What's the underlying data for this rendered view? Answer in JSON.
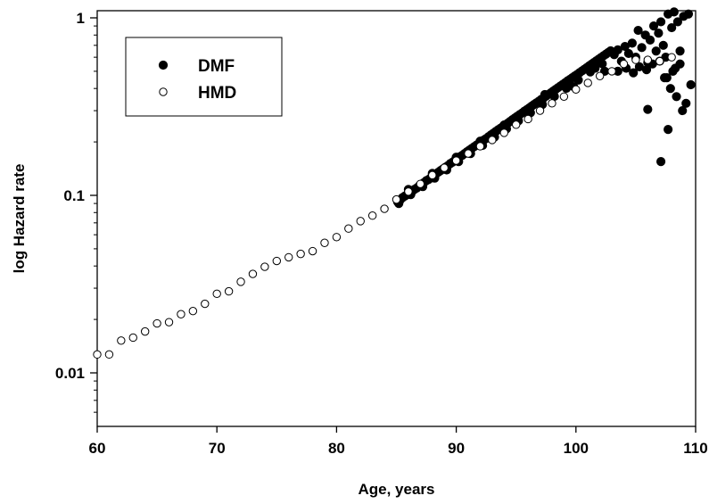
{
  "chart_data": {
    "type": "scatter",
    "title": "",
    "xlabel": "Age, years",
    "ylabel": "log Hazard rate",
    "xlim": [
      60,
      110
    ],
    "ylim": [
      0.005,
      1.15
    ],
    "yscale": "log",
    "grid": false,
    "legend_position": "top-left",
    "x_ticks": [
      60,
      70,
      80,
      90,
      100,
      110
    ],
    "x_tick_labels": [
      "60",
      "70",
      "80",
      "90",
      "100",
      "110"
    ],
    "y_ticks": [
      0.01,
      0.1,
      1
    ],
    "y_tick_labels": [
      "0.01",
      "0.1",
      "1"
    ],
    "series": [
      {
        "name": "DMF",
        "marker": "filled-circle",
        "color": "#000000",
        "points": [
          [
            85.1,
            0.092
          ],
          [
            85.3,
            0.094
          ],
          [
            85.5,
            0.097
          ],
          [
            85.7,
            0.099
          ],
          [
            85.9,
            0.101
          ],
          [
            86.1,
            0.103
          ],
          [
            86.3,
            0.105
          ],
          [
            86.5,
            0.108
          ],
          [
            86.7,
            0.11
          ],
          [
            86.9,
            0.113
          ],
          [
            87.1,
            0.115
          ],
          [
            87.3,
            0.118
          ],
          [
            87.5,
            0.121
          ],
          [
            87.7,
            0.123
          ],
          [
            87.9,
            0.126
          ],
          [
            88.1,
            0.129
          ],
          [
            88.3,
            0.132
          ],
          [
            88.5,
            0.135
          ],
          [
            88.7,
            0.138
          ],
          [
            88.9,
            0.141
          ],
          [
            89.1,
            0.144
          ],
          [
            89.3,
            0.147
          ],
          [
            89.5,
            0.151
          ],
          [
            89.7,
            0.154
          ],
          [
            89.9,
            0.158
          ],
          [
            90.1,
            0.161
          ],
          [
            90.3,
            0.165
          ],
          [
            90.5,
            0.168
          ],
          [
            90.7,
            0.172
          ],
          [
            90.9,
            0.176
          ],
          [
            91.1,
            0.18
          ],
          [
            91.3,
            0.184
          ],
          [
            91.5,
            0.188
          ],
          [
            91.7,
            0.192
          ],
          [
            91.9,
            0.196
          ],
          [
            92.1,
            0.2
          ],
          [
            92.3,
            0.205
          ],
          [
            92.5,
            0.209
          ],
          [
            92.7,
            0.214
          ],
          [
            92.9,
            0.219
          ],
          [
            93.1,
            0.224
          ],
          [
            93.3,
            0.229
          ],
          [
            93.5,
            0.234
          ],
          [
            93.7,
            0.239
          ],
          [
            93.9,
            0.244
          ],
          [
            94.1,
            0.25
          ],
          [
            94.3,
            0.255
          ],
          [
            94.5,
            0.261
          ],
          [
            94.7,
            0.267
          ],
          [
            94.9,
            0.273
          ],
          [
            95.1,
            0.279
          ],
          [
            95.3,
            0.285
          ],
          [
            95.5,
            0.291
          ],
          [
            95.7,
            0.298
          ],
          [
            95.9,
            0.304
          ],
          [
            96.1,
            0.311
          ],
          [
            96.3,
            0.318
          ],
          [
            96.5,
            0.325
          ],
          [
            96.7,
            0.332
          ],
          [
            96.9,
            0.339
          ],
          [
            97.1,
            0.347
          ],
          [
            97.3,
            0.354
          ],
          [
            97.5,
            0.362
          ],
          [
            97.7,
            0.37
          ],
          [
            97.9,
            0.378
          ],
          [
            98.1,
            0.387
          ],
          [
            98.3,
            0.395
          ],
          [
            98.5,
            0.404
          ],
          [
            98.7,
            0.413
          ],
          [
            98.9,
            0.422
          ],
          [
            99.1,
            0.431
          ],
          [
            99.3,
            0.441
          ],
          [
            99.5,
            0.45
          ],
          [
            99.7,
            0.46
          ],
          [
            99.9,
            0.47
          ],
          [
            100.1,
            0.48
          ],
          [
            100.3,
            0.491
          ],
          [
            100.5,
            0.502
          ],
          [
            100.7,
            0.513
          ],
          [
            100.9,
            0.524
          ],
          [
            101.1,
            0.536
          ],
          [
            101.3,
            0.548
          ],
          [
            101.5,
            0.56
          ],
          [
            101.7,
            0.572
          ],
          [
            101.9,
            0.585
          ],
          [
            102.1,
            0.598
          ],
          [
            102.3,
            0.611
          ],
          [
            102.5,
            0.624
          ],
          [
            102.7,
            0.638
          ],
          [
            102.9,
            0.652
          ],
          [
            85.2,
            0.09
          ],
          [
            86.2,
            0.101
          ],
          [
            87.2,
            0.112
          ],
          [
            88.2,
            0.125
          ],
          [
            89.2,
            0.139
          ],
          [
            90.2,
            0.155
          ],
          [
            91.2,
            0.172
          ],
          [
            92.2,
            0.191
          ],
          [
            93.2,
            0.213
          ],
          [
            94.2,
            0.237
          ],
          [
            95.2,
            0.263
          ],
          [
            96.2,
            0.292
          ],
          [
            97.2,
            0.325
          ],
          [
            98.2,
            0.361
          ],
          [
            99.2,
            0.401
          ],
          [
            100.2,
            0.446
          ],
          [
            101.2,
            0.496
          ],
          [
            102.2,
            0.551
          ],
          [
            86.0,
            0.108
          ],
          [
            88.0,
            0.133
          ],
          [
            90.0,
            0.164
          ],
          [
            92.0,
            0.202
          ],
          [
            94.0,
            0.249
          ],
          [
            96.0,
            0.306
          ],
          [
            98.0,
            0.376
          ],
          [
            100.0,
            0.463
          ],
          [
            97.4,
            0.37
          ],
          [
            99.8,
            0.41
          ],
          [
            101.6,
            0.52
          ],
          [
            102.4,
            0.5
          ],
          [
            103.2,
            0.62
          ],
          [
            103.5,
            0.66
          ],
          [
            103.8,
            0.57
          ],
          [
            104.1,
            0.69
          ],
          [
            104.4,
            0.63
          ],
          [
            104.7,
            0.72
          ],
          [
            105.0,
            0.6
          ],
          [
            105.2,
            0.85
          ],
          [
            105.5,
            0.68
          ],
          [
            105.8,
            0.8
          ],
          [
            106.0,
            0.56
          ],
          [
            106.2,
            0.75
          ],
          [
            106.5,
            0.9
          ],
          [
            106.7,
            0.65
          ],
          [
            106.9,
            0.82
          ],
          [
            107.1,
            0.95
          ],
          [
            107.3,
            0.7
          ],
          [
            107.5,
            0.6
          ],
          [
            107.7,
            1.05
          ],
          [
            108.0,
            0.88
          ],
          [
            108.2,
            1.08
          ],
          [
            108.5,
            0.95
          ],
          [
            108.7,
            0.65
          ],
          [
            109.0,
            1.02
          ],
          [
            109.4,
            1.05
          ],
          [
            103.5,
            0.5
          ],
          [
            104.2,
            0.52
          ],
          [
            104.8,
            0.49
          ],
          [
            105.3,
            0.53
          ],
          [
            105.9,
            0.51
          ],
          [
            106.4,
            0.55
          ],
          [
            107.0,
            0.57
          ],
          [
            107.6,
            0.46
          ],
          [
            108.3,
            0.52
          ],
          [
            108.7,
            0.55
          ],
          [
            106.0,
            0.305
          ],
          [
            107.1,
            0.155
          ],
          [
            107.7,
            0.235
          ],
          [
            107.9,
            0.4
          ],
          [
            108.4,
            0.36
          ],
          [
            108.9,
            0.3
          ],
          [
            109.2,
            0.33
          ],
          [
            109.6,
            0.42
          ],
          [
            107.4,
            0.46
          ],
          [
            108.1,
            0.5
          ]
        ]
      },
      {
        "name": "HMD",
        "marker": "open-circle",
        "color": "#000000",
        "points": [
          [
            60,
            0.0127
          ],
          [
            61,
            0.0127
          ],
          [
            62,
            0.0152
          ],
          [
            63,
            0.0158
          ],
          [
            64,
            0.0171
          ],
          [
            65,
            0.019
          ],
          [
            66,
            0.0193
          ],
          [
            67,
            0.0214
          ],
          [
            68,
            0.0223
          ],
          [
            69,
            0.0245
          ],
          [
            70,
            0.0279
          ],
          [
            71,
            0.0288
          ],
          [
            72,
            0.0326
          ],
          [
            73,
            0.0361
          ],
          [
            74,
            0.0396
          ],
          [
            75,
            0.0427
          ],
          [
            76,
            0.0448
          ],
          [
            77,
            0.0468
          ],
          [
            78,
            0.0485
          ],
          [
            79,
            0.054
          ],
          [
            80,
            0.0582
          ],
          [
            81,
            0.065
          ],
          [
            82,
            0.0716
          ],
          [
            83,
            0.0769
          ],
          [
            84,
            0.084
          ],
          [
            85,
            0.0948
          ],
          [
            86,
            0.105
          ],
          [
            87,
            0.116
          ],
          [
            88,
            0.13
          ],
          [
            89,
            0.143
          ],
          [
            90,
            0.157
          ],
          [
            91,
            0.172
          ],
          [
            92,
            0.189
          ],
          [
            93,
            0.205
          ],
          [
            94,
            0.225
          ],
          [
            95,
            0.25
          ],
          [
            96,
            0.269
          ],
          [
            97,
            0.3
          ],
          [
            98,
            0.33
          ],
          [
            99,
            0.36
          ],
          [
            100,
            0.395
          ],
          [
            101,
            0.43
          ],
          [
            102,
            0.47
          ],
          [
            103,
            0.5
          ],
          [
            104,
            0.55
          ],
          [
            105,
            0.58
          ],
          [
            106,
            0.58
          ],
          [
            107,
            0.57
          ],
          [
            108,
            0.6
          ]
        ]
      }
    ]
  }
}
